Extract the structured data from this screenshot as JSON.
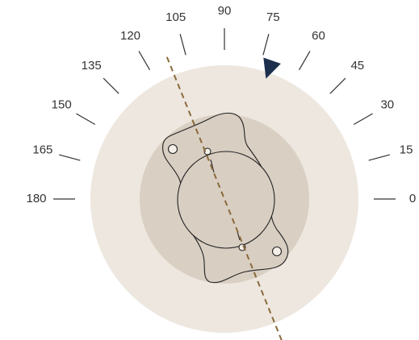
{
  "dial": {
    "scale_labels": [
      "180",
      "165",
      "150",
      "135",
      "120",
      "105",
      "90",
      "75",
      "60",
      "45",
      "30",
      "15",
      "0"
    ],
    "scale_start_deg": 180,
    "scale_step_deg": 15,
    "pointer_deg": 71,
    "axis_line_deg": 112,
    "colors": {
      "outer_disk": "#ede7df",
      "inner_disk": "#d9cfc3",
      "tick_marks": "#333333",
      "labels": "#333333",
      "pointer": "#1c2f4d",
      "axis_line": "#8a6a3c",
      "lens_outline": "#222222",
      "lens_fill": "#d8cec2"
    },
    "icons": {
      "pointer": "triangle-marker-icon",
      "lens": "toric-lens-icon"
    }
  }
}
